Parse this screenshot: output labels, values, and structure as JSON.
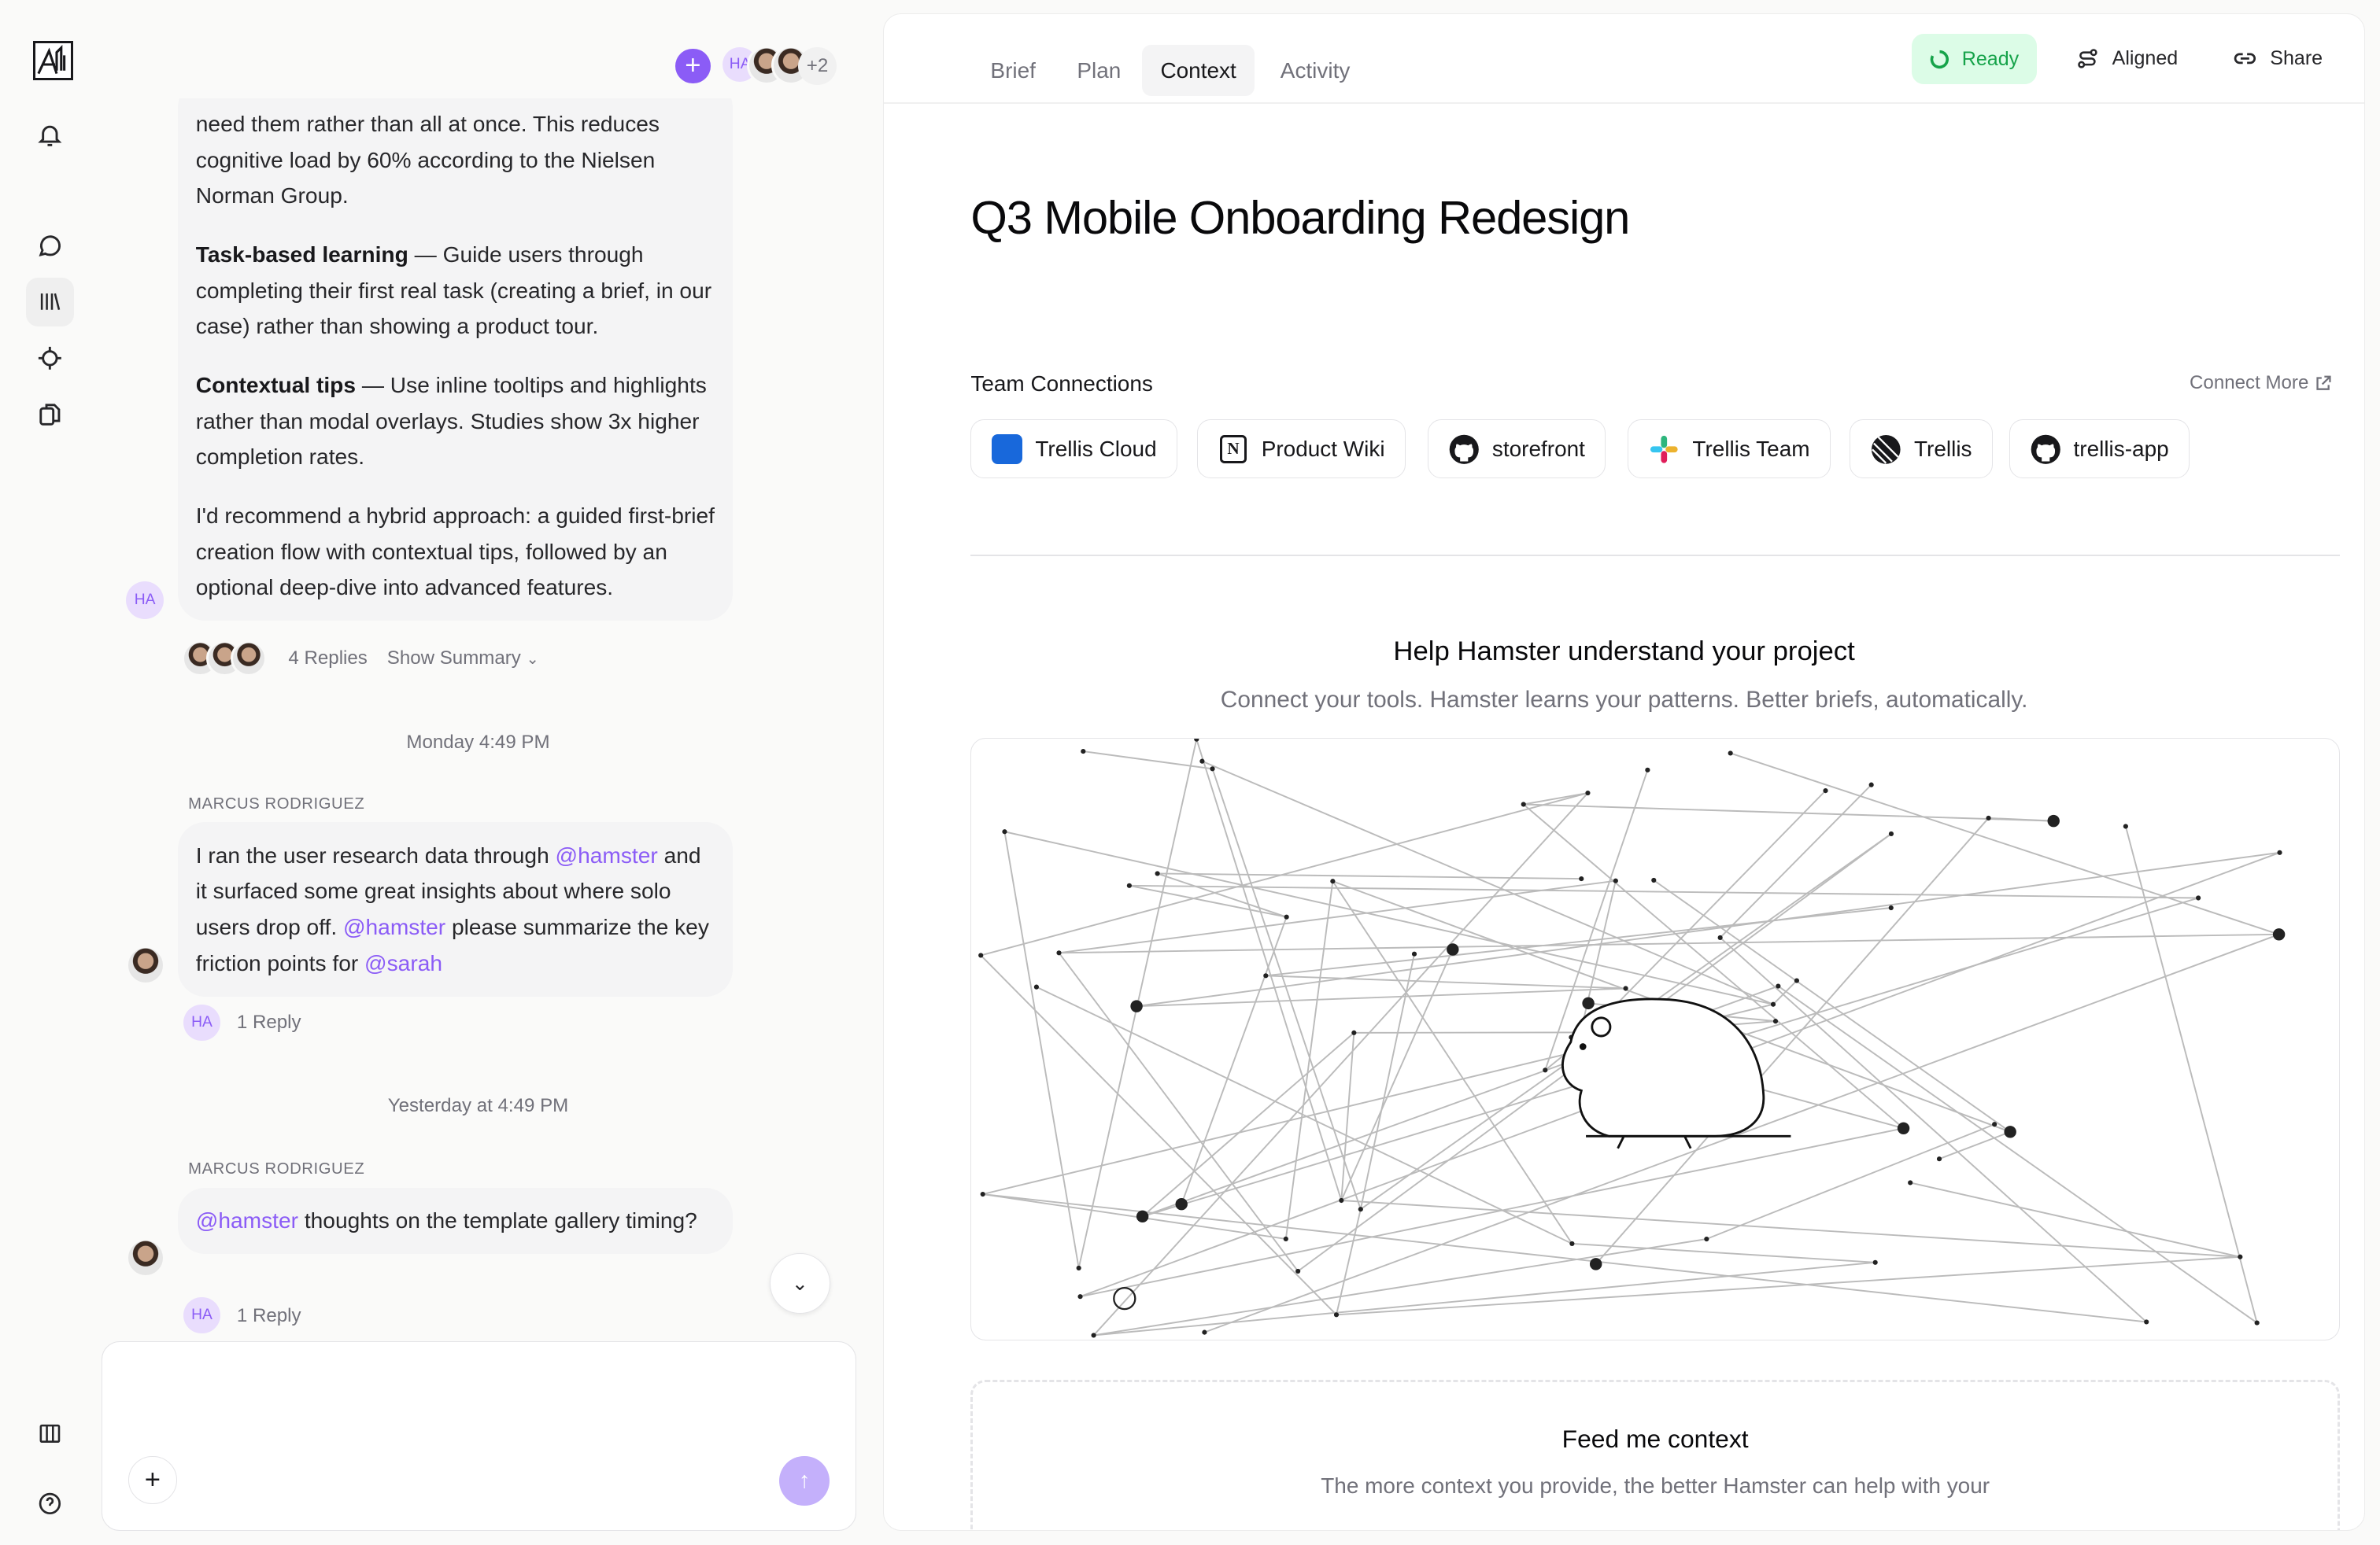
{
  "rail": {
    "items": [
      "notifications",
      "chat",
      "library",
      "target",
      "documents"
    ],
    "bottom": [
      "panel",
      "help"
    ]
  },
  "chat": {
    "header": {
      "avatar_initials": "HA",
      "more_count": "+2"
    },
    "messages": [
      {
        "paragraphs": [
          {
            "bold": "",
            "text": "need them rather than all at once. This reduces cognitive load by 60% according to the Nielsen Norman Group."
          },
          {
            "bold": "Task-based learning",
            "text": " — Guide users through completing their first real task (creating a brief, in our case) rather than showing a product tour."
          },
          {
            "bold": "Contextual tips",
            "text": " — Use inline tooltips and highlights rather than modal overlays. Studies show 3x higher completion rates."
          },
          {
            "bold": "",
            "text": "I'd recommend a hybrid approach: a guided first-brief creation flow with contextual tips, followed by an optional deep-dive into advanced features."
          }
        ],
        "avatar": "HA",
        "replies": "4 Replies",
        "summary": "Show Summary"
      },
      {
        "timestamp": "Monday 4:49 PM",
        "sender": "MARCUS RODRIGUEZ",
        "parts": [
          "I ran the user research data through ",
          "@hamster",
          " and it surfaced some great insights about where solo users drop off. ",
          "@hamster",
          " please summarize the key friction points for ",
          "@sarah"
        ],
        "reply_avatar": "HA",
        "replies": "1 Reply"
      },
      {
        "timestamp": "Yesterday at 4:49 PM",
        "sender": "MARCUS RODRIGUEZ",
        "parts": [
          "@hamster",
          " thoughts on the template gallery timing?"
        ],
        "reply_avatar": "HA",
        "replies": "1 Reply"
      }
    ],
    "input": {
      "placeholder": ""
    }
  },
  "panel": {
    "tabs": [
      {
        "label": "Brief"
      },
      {
        "label": "Plan"
      },
      {
        "label": "Context",
        "active": true
      },
      {
        "label": "Activity"
      }
    ],
    "status": {
      "label": "Ready",
      "color": "#16a34a",
      "bg": "#dcfce7"
    },
    "aligned_label": "Aligned",
    "share_label": "Share",
    "title": "Q3 Mobile Onboarding Redesign",
    "connections": {
      "heading": "Team Connections",
      "connect_more": "Connect More",
      "items": [
        {
          "label": "Trellis Cloud",
          "icon": "jira-icon"
        },
        {
          "label": "Product Wiki",
          "icon": "notion-icon"
        },
        {
          "label": "storefront",
          "icon": "github-icon"
        },
        {
          "label": "Trellis Team",
          "icon": "slack-icon"
        },
        {
          "label": "Trellis",
          "icon": "linear-icon"
        },
        {
          "label": "trellis-app",
          "icon": "github-icon"
        }
      ]
    },
    "help": {
      "heading": "Help Hamster understand your project",
      "subtitle": "Connect your tools. Hamster learns your patterns. Better briefs, automatically."
    },
    "feed": {
      "heading": "Feed me context",
      "text": "The more context you provide, the better Hamster can help with your"
    }
  },
  "colors": {
    "accent": "#8b5cf6",
    "bubble": "#f4f4f5"
  }
}
